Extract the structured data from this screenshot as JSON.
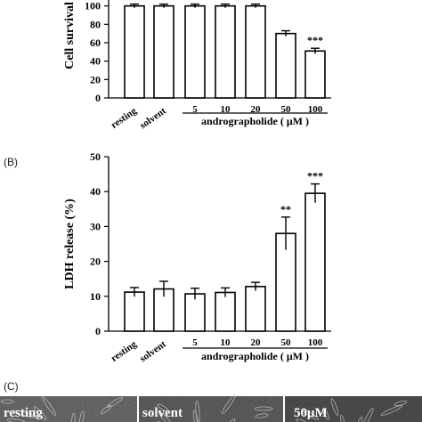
{
  "panels": {
    "b_letter": "(B)",
    "c_letter": "(C)"
  },
  "chart_data": [
    {
      "type": "bar",
      "ylabel": "Cell survival",
      "categories": [
        "resting",
        "solvent",
        "5",
        "10",
        "20",
        "50",
        "100"
      ],
      "group_label": "andrographolide ( μM )",
      "ylim": [
        0,
        120
      ],
      "yticks": [
        0,
        20,
        40,
        60,
        80,
        100
      ],
      "values": [
        100,
        100,
        100,
        100,
        100,
        70,
        51
      ],
      "errors": [
        2,
        2,
        2,
        2,
        2,
        3,
        3
      ],
      "annotations": [
        "",
        "",
        "",
        "",
        "",
        "",
        "***"
      ]
    },
    {
      "type": "bar",
      "ylabel": "LDH release (%)",
      "categories": [
        "resting",
        "solvent",
        "5",
        "10",
        "20",
        "50",
        "100"
      ],
      "group_label": "andrographolide ( μM )",
      "ylim": [
        0,
        50
      ],
      "yticks": [
        0,
        10,
        20,
        30,
        40,
        50
      ],
      "values": [
        11.2,
        12.1,
        10.7,
        11.1,
        12.8,
        28.0,
        39.5
      ],
      "errors": [
        1.3,
        2.2,
        1.6,
        1.3,
        1.2,
        4.7,
        2.7
      ],
      "annotations": [
        "",
        "",
        "",
        "",
        "",
        "**",
        "***"
      ]
    }
  ],
  "photos": [
    {
      "label": "resting",
      "tone": "#6a6a6a"
    },
    {
      "label": "solvent",
      "tone": "#5e5e5e"
    },
    {
      "label": "50μM",
      "tone": "#4e4e4e"
    }
  ]
}
